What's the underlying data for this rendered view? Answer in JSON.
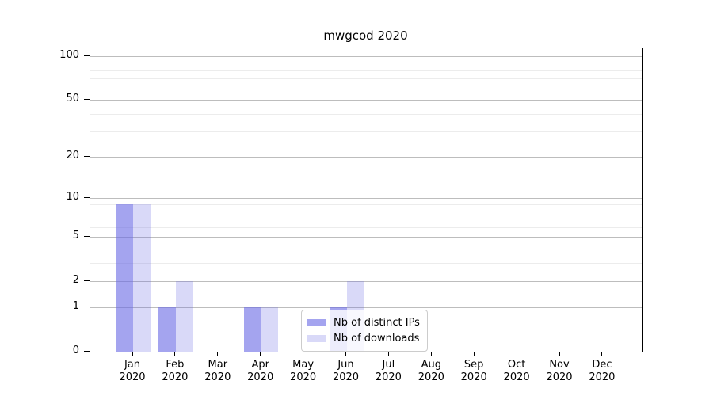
{
  "figure": {
    "title": "mwgcod 2020"
  },
  "chart_data": {
    "type": "bar",
    "title": "mwgcod 2020",
    "xlabel": "",
    "ylabel": "",
    "categories": [
      "Jan 2020",
      "Feb 2020",
      "Mar 2020",
      "Apr 2020",
      "May 2020",
      "Jun 2020",
      "Jul 2020",
      "Aug 2020",
      "Sep 2020",
      "Oct 2020",
      "Nov 2020",
      "Dec 2020"
    ],
    "x_tick_labels": [
      {
        "month": "Jan",
        "year": "2020"
      },
      {
        "month": "Feb",
        "year": "2020"
      },
      {
        "month": "Mar",
        "year": "2020"
      },
      {
        "month": "Apr",
        "year": "2020"
      },
      {
        "month": "May",
        "year": "2020"
      },
      {
        "month": "Jun",
        "year": "2020"
      },
      {
        "month": "Jul",
        "year": "2020"
      },
      {
        "month": "Aug",
        "year": "2020"
      },
      {
        "month": "Sep",
        "year": "2020"
      },
      {
        "month": "Oct",
        "year": "2020"
      },
      {
        "month": "Nov",
        "year": "2020"
      },
      {
        "month": "Dec",
        "year": "2020"
      }
    ],
    "series": [
      {
        "name": "Nb of distinct IPs",
        "color": "rgba(103,103,228,0.6)",
        "values": [
          9,
          1,
          0,
          1,
          0,
          1,
          0,
          0,
          0,
          0,
          0,
          0
        ]
      },
      {
        "name": "Nb of downloads",
        "color": "rgba(103,103,228,0.25)",
        "values": [
          9,
          2,
          0,
          1,
          0,
          2,
          0,
          0,
          0,
          0,
          0,
          0
        ]
      }
    ],
    "yscale": "log1p",
    "ylim": [
      0,
      113
    ],
    "y_major_ticks": [
      100,
      50,
      20,
      10,
      5,
      2,
      1,
      0
    ],
    "y_minor_gridlines": [
      90,
      80,
      70,
      60,
      40,
      30,
      9,
      8,
      7,
      6,
      4,
      3
    ],
    "grid": "horizontal-only",
    "legend": {
      "position": "inside-lower-center"
    },
    "colors": {
      "bar_distinct_ips": "rgba(103,103,228,0.6)",
      "bar_downloads": "rgba(103,103,228,0.25)",
      "grid_major": "#bdbdbd",
      "grid_minor": "#ececec",
      "spine": "#000000",
      "text": "#000000",
      "legend_border": "#cccccc"
    }
  }
}
